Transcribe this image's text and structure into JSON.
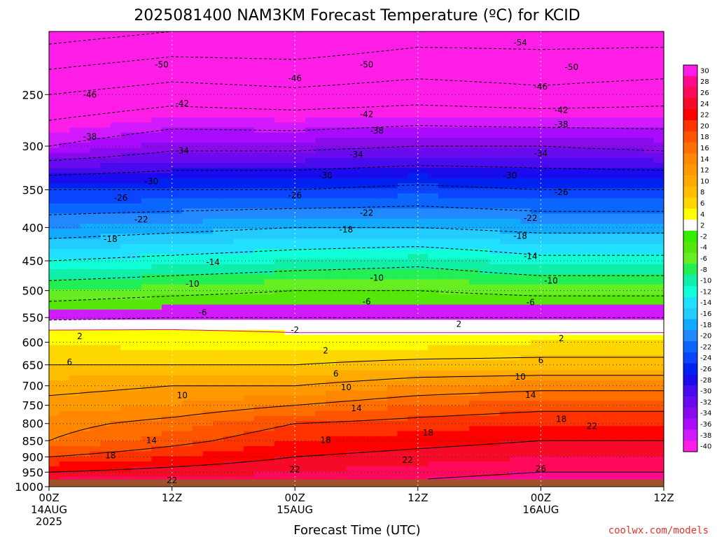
{
  "chart_data": {
    "type": "heatmap",
    "title": "2025081400 NAM3KM Forecast Temperature (ºC) for KCID",
    "xlabel": "Forecast Time (UTC)",
    "ylabel": "",
    "credit": "coolwx.com/models",
    "x_hours": [
      0,
      12,
      24,
      36,
      48,
      60
    ],
    "x_tick_labels": [
      [
        "00Z",
        "14AUG",
        "2025"
      ],
      [
        "12Z"
      ],
      [
        "00Z",
        "15AUG"
      ],
      [
        "12Z"
      ],
      [
        "00Z",
        "16AUG"
      ],
      [
        "12Z"
      ]
    ],
    "xlim": [
      0,
      60
    ],
    "y_pressure_ticks": [
      250,
      300,
      350,
      400,
      450,
      500,
      550,
      600,
      650,
      700,
      750,
      800,
      850,
      900,
      950,
      1000
    ],
    "ylim_hPa": [
      1000,
      200
    ],
    "y_scale": "log",
    "grid": true,
    "colorbar": {
      "levels": [
        30,
        28,
        26,
        24,
        22,
        20,
        18,
        16,
        14,
        12,
        10,
        8,
        6,
        4,
        2,
        -2,
        -4,
        -6,
        -8,
        -10,
        -12,
        -14,
        -16,
        -18,
        -20,
        -22,
        -24,
        -26,
        -28,
        -30,
        -32,
        -34,
        -36,
        -38,
        -40
      ],
      "colors": [
        "#ff1be9",
        "#ff0a8c",
        "#ff0a5a",
        "#f50a28",
        "#ff0000",
        "#ff3300",
        "#ff5500",
        "#ff6f00",
        "#ff8800",
        "#ff9900",
        "#ffaa00",
        "#ffbf00",
        "#ffd700",
        "#ffff00",
        "#ffffff",
        "#33ee00",
        "#55e60a",
        "#66ee22",
        "#22ee55",
        "#11eeaa",
        "#11ffd8",
        "#22e0ff",
        "#22ccff",
        "#11aaff",
        "#2288ff",
        "#0a66ff",
        "#0a44ff",
        "#0022f0",
        "#1a0aee",
        "#4a0aee",
        "#6a0aee",
        "#8a0aee",
        "#aa0aff",
        "#d21aff",
        "#ff1ee8"
      ]
    },
    "temperature_profiles": {
      "pressure_hPa": [
        200,
        250,
        300,
        350,
        400,
        450,
        500,
        550,
        580,
        600,
        650,
        700,
        750,
        800,
        850,
        900,
        950,
        975
      ],
      "series": [
        {
          "hour": 0,
          "values": [
            -56,
            -46,
            -38,
            -26,
            -20,
            -14,
            -8,
            -3,
            3,
            4,
            6,
            9,
            11,
            13,
            14,
            18,
            22,
            24
          ]
        },
        {
          "hour": 12,
          "values": [
            -54,
            -44,
            -35,
            -26,
            -19,
            -13,
            -7,
            -2,
            3,
            3,
            6,
            10,
            12,
            15,
            17,
            20,
            23,
            25
          ]
        },
        {
          "hour": 24,
          "values": [
            -54,
            -45,
            -35,
            -26,
            -18,
            -12,
            -6,
            -2,
            2,
            3,
            6,
            10,
            14,
            18,
            20,
            22,
            24,
            25
          ]
        },
        {
          "hour": 36,
          "values": [
            -52,
            -44,
            -34,
            -25,
            -18,
            -11,
            -6,
            -2,
            2,
            3,
            7,
            12,
            16,
            19,
            21,
            23,
            25,
            26
          ]
        },
        {
          "hour": 48,
          "values": [
            -52,
            -45,
            -34,
            -26,
            -19,
            -13,
            -7,
            -2,
            2,
            4,
            7,
            13,
            17,
            20,
            22,
            24,
            26,
            27
          ]
        },
        {
          "hour": 60,
          "values": [
            -52,
            -44,
            -35,
            -26,
            -19,
            -13,
            -7,
            -2,
            2,
            4,
            7,
            13,
            17,
            20,
            22,
            24,
            26,
            27
          ]
        }
      ]
    },
    "contour_labels": [
      {
        "text": "-54",
        "hour": 46,
        "p": 208
      },
      {
        "text": "-50",
        "hour": 11,
        "p": 225
      },
      {
        "text": "-50",
        "hour": 31,
        "p": 225
      },
      {
        "text": "-50",
        "hour": 51,
        "p": 227
      },
      {
        "text": "-46",
        "hour": 4,
        "p": 250
      },
      {
        "text": "-46",
        "hour": 24,
        "p": 236
      },
      {
        "text": "-46",
        "hour": 48,
        "p": 243
      },
      {
        "text": "-42",
        "hour": 13,
        "p": 258
      },
      {
        "text": "-42",
        "hour": 31,
        "p": 268
      },
      {
        "text": "-42",
        "hour": 50,
        "p": 264
      },
      {
        "text": "-38",
        "hour": 4,
        "p": 290
      },
      {
        "text": "-38",
        "hour": 32,
        "p": 284
      },
      {
        "text": "-38",
        "hour": 50,
        "p": 278
      },
      {
        "text": "-34",
        "hour": 13,
        "p": 305
      },
      {
        "text": "-34",
        "hour": 30,
        "p": 309
      },
      {
        "text": "-34",
        "hour": 48,
        "p": 308
      },
      {
        "text": "-30",
        "hour": 10,
        "p": 340
      },
      {
        "text": "-30",
        "hour": 27,
        "p": 333
      },
      {
        "text": "-30",
        "hour": 45,
        "p": 333
      },
      {
        "text": "-26",
        "hour": 7,
        "p": 360
      },
      {
        "text": "-26",
        "hour": 24,
        "p": 357
      },
      {
        "text": "-26",
        "hour": 50,
        "p": 353
      },
      {
        "text": "-22",
        "hour": 9,
        "p": 389
      },
      {
        "text": "-22",
        "hour": 31,
        "p": 380
      },
      {
        "text": "-22",
        "hour": 47,
        "p": 387
      },
      {
        "text": "-18",
        "hour": 6,
        "p": 417
      },
      {
        "text": "-18",
        "hour": 29,
        "p": 403
      },
      {
        "text": "-18",
        "hour": 46,
        "p": 412
      },
      {
        "text": "-14",
        "hour": 16,
        "p": 452
      },
      {
        "text": "-14",
        "hour": 47,
        "p": 443
      },
      {
        "text": "-10",
        "hour": 14,
        "p": 488
      },
      {
        "text": "-10",
        "hour": 32,
        "p": 478
      },
      {
        "text": "-10",
        "hour": 49,
        "p": 483
      },
      {
        "text": "-6",
        "hour": 15,
        "p": 540
      },
      {
        "text": "-6",
        "hour": 31,
        "p": 520
      },
      {
        "text": "-6",
        "hour": 47,
        "p": 521
      },
      {
        "text": "-2",
        "hour": 24,
        "p": 575
      },
      {
        "text": "2",
        "hour": 3,
        "p": 588
      },
      {
        "text": "2",
        "hour": 40,
        "p": 563
      },
      {
        "text": "2",
        "hour": 27,
        "p": 618
      },
      {
        "text": "2",
        "hour": 50,
        "p": 592
      },
      {
        "text": "6",
        "hour": 2,
        "p": 644
      },
      {
        "text": "6",
        "hour": 28,
        "p": 671
      },
      {
        "text": "6",
        "hour": 48,
        "p": 640
      },
      {
        "text": "10",
        "hour": 13,
        "p": 724
      },
      {
        "text": "10",
        "hour": 29,
        "p": 704
      },
      {
        "text": "10",
        "hour": 46,
        "p": 678
      },
      {
        "text": "14",
        "hour": 10,
        "p": 849
      },
      {
        "text": "14",
        "hour": 30,
        "p": 758
      },
      {
        "text": "14",
        "hour": 47,
        "p": 723
      },
      {
        "text": "18",
        "hour": 6,
        "p": 896
      },
      {
        "text": "18",
        "hour": 27,
        "p": 848
      },
      {
        "text": "18",
        "hour": 37,
        "p": 827
      },
      {
        "text": "18",
        "hour": 50,
        "p": 788
      },
      {
        "text": "22",
        "hour": 12,
        "p": 978
      },
      {
        "text": "22",
        "hour": 24,
        "p": 941
      },
      {
        "text": "22",
        "hour": 35,
        "p": 910
      },
      {
        "text": "22",
        "hour": 53,
        "p": 807
      },
      {
        "text": "26",
        "hour": 48,
        "p": 939
      }
    ]
  }
}
